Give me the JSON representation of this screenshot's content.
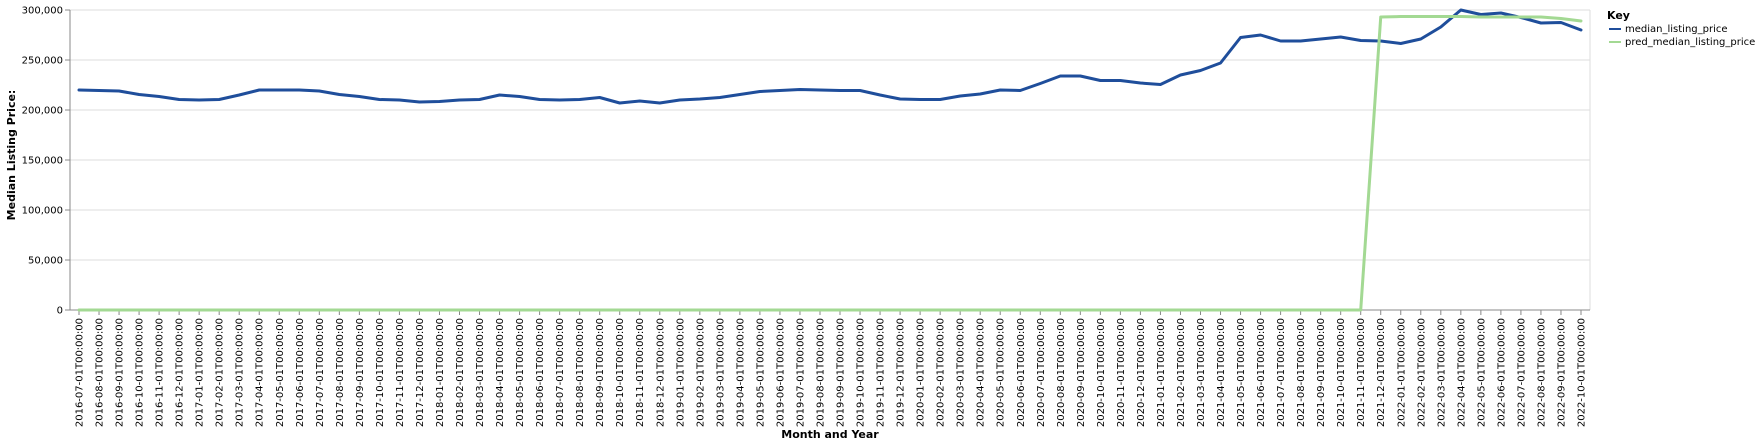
{
  "chart_data": {
    "type": "line",
    "xlabel": "Month and Year",
    "ylabel": "Median Listing Price:",
    "ylim": [
      0,
      300000
    ],
    "yticks": [
      0,
      50000,
      100000,
      150000,
      200000,
      250000,
      300000
    ],
    "ytick_labels": [
      "0",
      "50,000",
      "100,000",
      "150,000",
      "200,000",
      "250,000",
      "300,000"
    ],
    "grid": true,
    "legend": {
      "title": "Key",
      "position": "right"
    },
    "x": [
      "2016-07-01T00:00:00",
      "2016-08-01T00:00:00",
      "2016-09-01T00:00:00",
      "2016-10-01T00:00:00",
      "2016-11-01T00:00:00",
      "2016-12-01T00:00:00",
      "2017-01-01T00:00:00",
      "2017-02-01T00:00:00",
      "2017-03-01T00:00:00",
      "2017-04-01T00:00:00",
      "2017-05-01T00:00:00",
      "2017-06-01T00:00:00",
      "2017-07-01T00:00:00",
      "2017-08-01T00:00:00",
      "2017-09-01T00:00:00",
      "2017-10-01T00:00:00",
      "2017-11-01T00:00:00",
      "2017-12-01T00:00:00",
      "2018-01-01T00:00:00",
      "2018-02-01T00:00:00",
      "2018-03-01T00:00:00",
      "2018-04-01T00:00:00",
      "2018-05-01T00:00:00",
      "2018-06-01T00:00:00",
      "2018-07-01T00:00:00",
      "2018-08-01T00:00:00",
      "2018-09-01T00:00:00",
      "2018-10-01T00:00:00",
      "2018-11-01T00:00:00",
      "2018-12-01T00:00:00",
      "2019-01-01T00:00:00",
      "2019-02-01T00:00:00",
      "2019-03-01T00:00:00",
      "2019-04-01T00:00:00",
      "2019-05-01T00:00:00",
      "2019-06-01T00:00:00",
      "2019-07-01T00:00:00",
      "2019-08-01T00:00:00",
      "2019-09-01T00:00:00",
      "2019-10-01T00:00:00",
      "2019-11-01T00:00:00",
      "2019-12-01T00:00:00",
      "2020-01-01T00:00:00",
      "2020-02-01T00:00:00",
      "2020-03-01T00:00:00",
      "2020-04-01T00:00:00",
      "2020-05-01T00:00:00",
      "2020-06-01T00:00:00",
      "2020-07-01T00:00:00",
      "2020-08-01T00:00:00",
      "2020-09-01T00:00:00",
      "2020-10-01T00:00:00",
      "2020-11-01T00:00:00",
      "2020-12-01T00:00:00",
      "2021-01-01T00:00:00",
      "2021-02-01T00:00:00",
      "2021-03-01T00:00:00",
      "2021-04-01T00:00:00",
      "2021-05-01T00:00:00",
      "2021-06-01T00:00:00",
      "2021-07-01T00:00:00",
      "2021-08-01T00:00:00",
      "2021-09-01T00:00:00",
      "2021-10-01T00:00:00",
      "2021-11-01T00:00:00",
      "2021-12-01T00:00:00",
      "2022-01-01T00:00:00",
      "2022-02-01T00:00:00",
      "2022-03-01T00:00:00",
      "2022-04-01T00:00:00",
      "2022-05-01T00:00:00",
      "2022-06-01T00:00:00",
      "2022-07-01T00:00:00",
      "2022-08-01T00:00:00",
      "2022-09-01T00:00:00",
      "2022-10-01T00:00:00"
    ],
    "series": [
      {
        "name": "median_listing_price",
        "color": "#1f4e9b",
        "values": [
          220000,
          219500,
          219000,
          215500,
          213500,
          210500,
          210000,
          210500,
          215000,
          220000,
          220000,
          220000,
          219000,
          215500,
          213500,
          210500,
          210000,
          208000,
          208500,
          210000,
          210500,
          215000,
          213500,
          210500,
          210000,
          210500,
          212500,
          207000,
          209000,
          207000,
          210000,
          211000,
          212500,
          215500,
          218500,
          219500,
          220500,
          220000,
          219500,
          219500,
          215000,
          211000,
          210500,
          210500,
          214000,
          216000,
          220000,
          219500,
          226500,
          234000,
          234000,
          229500,
          229500,
          227000,
          225500,
          235000,
          239500,
          247000,
          272500,
          275000,
          269000,
          269000,
          271000,
          273000,
          269500,
          269000,
          266500,
          271000,
          283000,
          300000,
          295500,
          297000,
          292500,
          287000,
          287500,
          280000
        ]
      },
      {
        "name": "pred_median_listing_price",
        "color": "#a3d993",
        "values": [
          0,
          0,
          0,
          0,
          0,
          0,
          0,
          0,
          0,
          0,
          0,
          0,
          0,
          0,
          0,
          0,
          0,
          0,
          0,
          0,
          0,
          0,
          0,
          0,
          0,
          0,
          0,
          0,
          0,
          0,
          0,
          0,
          0,
          0,
          0,
          0,
          0,
          0,
          0,
          0,
          0,
          0,
          0,
          0,
          0,
          0,
          0,
          0,
          0,
          0,
          0,
          0,
          0,
          0,
          0,
          0,
          0,
          0,
          0,
          0,
          0,
          0,
          0,
          0,
          0,
          293000,
          293500,
          293500,
          293500,
          293500,
          293000,
          293000,
          293000,
          293000,
          291500,
          289000
        ]
      }
    ]
  }
}
